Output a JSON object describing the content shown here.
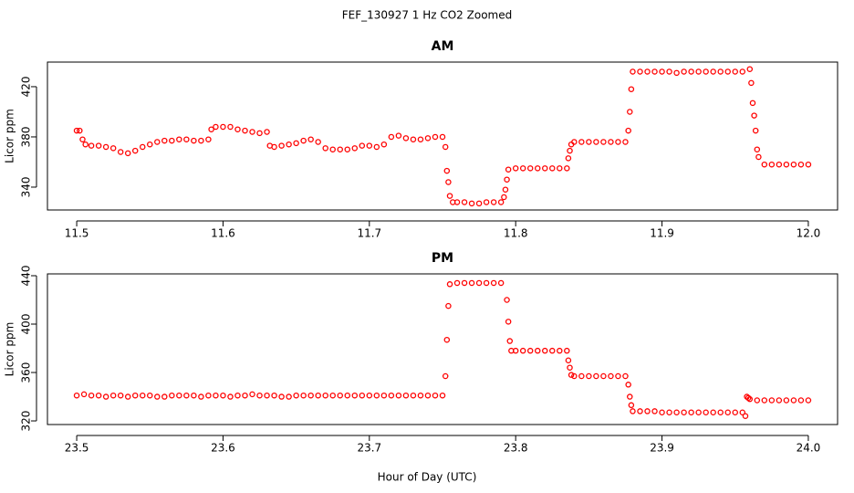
{
  "title": "FEF_130927  1 Hz CO2 Zoomed",
  "x_label": "Hour of Day (UTC)",
  "chart_data": [
    {
      "type": "scatter",
      "title": "AM",
      "y_label": "Licor ppm",
      "color": "#ff0000",
      "xlim": [
        11.48,
        12.02
      ],
      "ylim": [
        321.8,
        439.6
      ],
      "xticks": [
        11.5,
        11.6,
        11.7,
        11.8,
        11.9,
        {
          "value": 12,
          "label": "12.0"
        }
      ],
      "yticks": [
        340,
        380,
        420
      ],
      "x": [
        11.5,
        11.502,
        11.504,
        11.506,
        11.51,
        11.515,
        11.52,
        11.525,
        11.53,
        11.535,
        11.54,
        11.545,
        11.55,
        11.555,
        11.56,
        11.565,
        11.57,
        11.575,
        11.58,
        11.585,
        11.59,
        11.592,
        11.595,
        11.6,
        11.605,
        11.61,
        11.615,
        11.62,
        11.625,
        11.63,
        11.632,
        11.635,
        11.64,
        11.645,
        11.65,
        11.655,
        11.66,
        11.665,
        11.67,
        11.675,
        11.68,
        11.685,
        11.69,
        11.695,
        11.7,
        11.705,
        11.71,
        11.715,
        11.72,
        11.725,
        11.73,
        11.735,
        11.74,
        11.745,
        11.75,
        11.752,
        11.753,
        11.754,
        11.755,
        11.757,
        11.76,
        11.765,
        11.77,
        11.775,
        11.78,
        11.785,
        11.79,
        11.792,
        11.793,
        11.794,
        11.795,
        11.8,
        11.805,
        11.81,
        11.815,
        11.82,
        11.825,
        11.83,
        11.835,
        11.836,
        11.837,
        11.838,
        11.84,
        11.845,
        11.85,
        11.855,
        11.86,
        11.865,
        11.87,
        11.875,
        11.877,
        11.878,
        11.879,
        11.88,
        11.885,
        11.89,
        11.895,
        11.9,
        11.905,
        11.91,
        11.915,
        11.92,
        11.925,
        11.93,
        11.935,
        11.94,
        11.945,
        11.95,
        11.955,
        11.96,
        11.961,
        11.962,
        11.963,
        11.964,
        11.965,
        11.966,
        11.97,
        11.975,
        11.98,
        11.985,
        11.99,
        11.995,
        12.0
      ],
      "values": [
        385,
        385,
        378,
        374,
        373,
        373,
        372,
        371,
        368,
        367,
        369,
        372,
        374,
        376,
        377,
        377,
        378,
        378,
        377,
        377,
        378,
        386,
        388,
        388,
        388,
        386,
        385,
        384,
        383,
        384,
        373,
        372,
        373,
        374,
        375,
        377,
        378,
        376,
        371,
        370,
        370,
        370,
        371,
        373,
        373,
        372,
        374,
        380,
        381,
        379,
        378,
        378,
        379,
        380,
        380,
        372,
        353,
        344,
        333,
        328,
        328,
        328,
        327,
        327,
        328,
        328,
        328,
        332,
        338,
        346,
        354,
        355,
        355,
        355,
        355,
        355,
        355,
        355,
        355,
        363,
        369,
        374,
        376,
        376,
        376,
        376,
        376,
        376,
        376,
        376,
        385,
        400,
        418,
        432,
        432,
        432,
        432,
        432,
        432,
        431,
        432,
        432,
        432,
        432,
        432,
        432,
        432,
        432,
        432,
        434,
        423,
        407,
        397,
        385,
        370,
        364,
        358,
        358,
        358,
        358,
        358,
        358,
        358
      ]
    },
    {
      "type": "scatter",
      "title": "PM",
      "y_label": "Licor ppm",
      "color": "#ff0000",
      "xlim": [
        23.48,
        24.02
      ],
      "ylim": [
        317,
        441.5
      ],
      "xticks": [
        23.5,
        23.6,
        23.7,
        23.8,
        23.9,
        {
          "value": 24,
          "label": "24.0"
        }
      ],
      "yticks": [
        320,
        360,
        400,
        440
      ],
      "x": [
        23.5,
        23.505,
        23.51,
        23.515,
        23.52,
        23.525,
        23.53,
        23.535,
        23.54,
        23.545,
        23.55,
        23.555,
        23.56,
        23.565,
        23.57,
        23.575,
        23.58,
        23.585,
        23.59,
        23.595,
        23.6,
        23.605,
        23.61,
        23.615,
        23.62,
        23.625,
        23.63,
        23.635,
        23.64,
        23.645,
        23.65,
        23.655,
        23.66,
        23.665,
        23.67,
        23.675,
        23.68,
        23.685,
        23.69,
        23.695,
        23.7,
        23.705,
        23.71,
        23.715,
        23.72,
        23.725,
        23.73,
        23.735,
        23.74,
        23.745,
        23.75,
        23.752,
        23.753,
        23.754,
        23.755,
        23.76,
        23.765,
        23.77,
        23.775,
        23.78,
        23.785,
        23.79,
        23.794,
        23.795,
        23.796,
        23.797,
        23.8,
        23.805,
        23.81,
        23.815,
        23.82,
        23.825,
        23.83,
        23.835,
        23.836,
        23.837,
        23.838,
        23.84,
        23.845,
        23.85,
        23.855,
        23.86,
        23.865,
        23.87,
        23.875,
        23.877,
        23.878,
        23.879,
        23.88,
        23.885,
        23.89,
        23.895,
        23.9,
        23.905,
        23.91,
        23.915,
        23.92,
        23.925,
        23.93,
        23.935,
        23.94,
        23.945,
        23.95,
        23.955,
        23.957,
        23.958,
        23.959,
        23.96,
        23.965,
        23.97,
        23.975,
        23.98,
        23.985,
        23.99,
        23.995,
        24.0
      ],
      "values": [
        341,
        342,
        341,
        341,
        340,
        341,
        341,
        340,
        341,
        341,
        341,
        340,
        340,
        341,
        341,
        341,
        341,
        340,
        341,
        341,
        341,
        340,
        341,
        341,
        342,
        341,
        341,
        341,
        340,
        340,
        341,
        341,
        341,
        341,
        341,
        341,
        341,
        341,
        341,
        341,
        341,
        341,
        341,
        341,
        341,
        341,
        341,
        341,
        341,
        341,
        341,
        357,
        387,
        415,
        433,
        434,
        434,
        434,
        434,
        434,
        434,
        434,
        420,
        402,
        386,
        378,
        378,
        378,
        378,
        378,
        378,
        378,
        378,
        378,
        370,
        364,
        358,
        357,
        357,
        357,
        357,
        357,
        357,
        357,
        357,
        350,
        340,
        333,
        328,
        328,
        328,
        328,
        327,
        327,
        327,
        327,
        327,
        327,
        327,
        327,
        327,
        327,
        327,
        327,
        324,
        340,
        339,
        338,
        337,
        337,
        337,
        337,
        337,
        337,
        337,
        337
      ]
    }
  ]
}
